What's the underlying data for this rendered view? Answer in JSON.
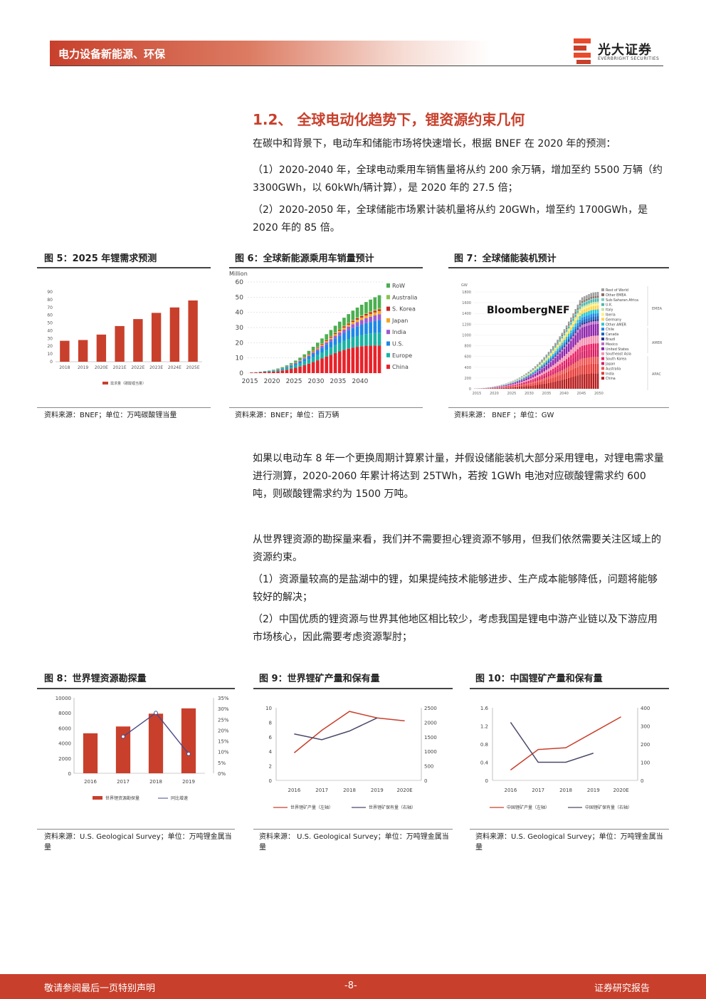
{
  "header": {
    "section": "电力设备新能源、环保",
    "logo_name": "光大证券",
    "logo_sub": "EVERBRIGHT SECURITIES",
    "accent": "#c8402c"
  },
  "section_title": "1.2、 全球电动化趋势下，锂资源约束几何",
  "paragraphs": {
    "p1": "在碳中和背景下，电动车和储能市场将快速增长，根据 BNEF 在 2020 年的预测：",
    "p2": "（1）2020-2040 年，全球电动乘用车销售量将从约 200 余万辆，增加至约 5500 万辆（约 3300GWh，以 60kWh/辆计算），是 2020 年的 27.5 倍；",
    "p3": "（2）2020-2050 年，全球储能市场累计装机量将从约 20GWh，增至约 1700GWh，是 2020 年的 85 倍。",
    "p4": "如果以电动车 8 年一个更换周期计算累计量，并假设储能装机大部分采用锂电，对锂电需求量进行测算，2020-2060 年累计将达到 25TWh，若按 1GWh 电池对应碳酸锂需求约 600 吨，则碳酸锂需求约为 1500 万吨。",
    "p5": "从世界锂资源的勘探量来看，我们并不需要担心锂资源不够用，但我们依然需要关注区域上的资源约束。",
    "p6": "（1）资源量较高的是盐湖中的锂，如果提纯技术能够进步、生产成本能够降低，问题将能够较好的解决；",
    "p7": "（2）中国优质的锂资源与世界其他地区相比较少，考虑我国是锂电中游产业链以及下游应用市场核心，因此需要考虑资源掣肘；"
  },
  "figures": {
    "fig5": {
      "title": "图 5：2025 年锂需求预测",
      "source": "资料来源：BNEF；单位：万吨碳酸锂当量"
    },
    "fig6": {
      "title": "图 6：全球新能源乘用车销量预计",
      "source": "资料来源：BNEF；单位：百万辆"
    },
    "fig7": {
      "title": "图 7：全球储能装机预计",
      "source": "资料来源： BNEF ；单位：GW",
      "brand": "BloombergNEF"
    },
    "fig8": {
      "title": "图 8：世界锂资源勘探量",
      "source": "资料来源：U.S. Geological Survey；单位：万吨锂金属当量"
    },
    "fig9": {
      "title": "图 9：世界锂矿产量和保有量",
      "source": "资料来源： U.S. Geological Survey；单位：万吨锂金属当量"
    },
    "fig10": {
      "title": "图 10：中国锂矿产量和保有量",
      "source": "资料来源：U.S. Geological Survey；单位：万吨锂金属当量"
    }
  },
  "footer": {
    "left": "敬请参阅最后一页特别声明",
    "center": "-8-",
    "right": "证券研究报告"
  },
  "chart_data": [
    {
      "id": "fig5",
      "type": "bar",
      "categories": [
        "2018",
        "2019",
        "2020E",
        "2021E",
        "2022E",
        "2023E",
        "2024E",
        "2025E"
      ],
      "series": [
        {
          "name": "需求量（碳酸锂当量）",
          "values": [
            27,
            28,
            35,
            46,
            55,
            63,
            70,
            79
          ]
        }
      ],
      "ylim": [
        0,
        90
      ],
      "yticks": [
        0,
        10,
        20,
        30,
        40,
        50,
        60,
        70,
        80,
        90
      ],
      "color": "#c8402c"
    },
    {
      "id": "fig6",
      "type": "bar",
      "stacked": true,
      "yunit": "Million",
      "ylim": [
        0,
        60
      ],
      "yticks": [
        0,
        10,
        20,
        30,
        40,
        50,
        60
      ],
      "xticks": [
        "2015",
        "2020",
        "2025",
        "2030",
        "2035",
        "2040"
      ],
      "series": [
        {
          "name": "China",
          "color": "#e8222a",
          "values": [
            0.3,
            0.4,
            0.5,
            0.7,
            0.8,
            1.0,
            1.3,
            1.7,
            2.2,
            2.8,
            3.5,
            4.3,
            5.2,
            6.2,
            7.3,
            8.4,
            9.6,
            10.8,
            12.0,
            13.2,
            14.3,
            15.3,
            16.1,
            16.8,
            17.3,
            17.7,
            18.0,
            18.1,
            18.2,
            18.2
          ]
        },
        {
          "name": "Europe",
          "color": "#1bb3a3",
          "values": [
            0.1,
            0.1,
            0.2,
            0.3,
            0.4,
            0.5,
            0.7,
            0.9,
            1.1,
            1.4,
            1.7,
            2.0,
            2.4,
            2.8,
            3.2,
            3.6,
            4.0,
            4.4,
            4.8,
            5.2,
            5.6,
            6.0,
            6.4,
            6.8,
            7.1,
            7.4,
            7.7,
            8.0,
            8.2,
            8.4
          ]
        },
        {
          "name": "U.S.",
          "color": "#1e88e5",
          "values": [
            0.05,
            0.1,
            0.1,
            0.2,
            0.2,
            0.3,
            0.4,
            0.5,
            0.7,
            0.9,
            1.1,
            1.4,
            1.7,
            2.0,
            2.4,
            2.8,
            3.2,
            3.6,
            4.0,
            4.4,
            4.8,
            5.2,
            5.6,
            6.0,
            6.4,
            6.8,
            7.2,
            7.6,
            8.0,
            8.4
          ]
        },
        {
          "name": "India",
          "color": "#9c5bd3",
          "values": [
            0,
            0,
            0,
            0,
            0,
            0,
            0.05,
            0.1,
            0.1,
            0.2,
            0.3,
            0.4,
            0.5,
            0.6,
            0.8,
            1.0,
            1.2,
            1.4,
            1.6,
            1.8,
            2.0,
            2.2,
            2.4,
            2.6,
            2.8,
            3.0,
            3.2,
            3.4,
            3.6,
            3.8
          ]
        },
        {
          "name": "Japan",
          "color": "#f5a623",
          "values": [
            0.02,
            0.03,
            0.04,
            0.05,
            0.06,
            0.08,
            0.1,
            0.12,
            0.15,
            0.2,
            0.25,
            0.3,
            0.4,
            0.5,
            0.6,
            0.7,
            0.8,
            0.9,
            1.0,
            1.1,
            1.2,
            1.3,
            1.4,
            1.5,
            1.6,
            1.7,
            1.8,
            1.9,
            2.0,
            2.1
          ]
        },
        {
          "name": "S. Korea",
          "color": "#c62828",
          "values": [
            0.01,
            0.02,
            0.03,
            0.04,
            0.05,
            0.06,
            0.08,
            0.1,
            0.12,
            0.15,
            0.2,
            0.25,
            0.3,
            0.35,
            0.4,
            0.45,
            0.5,
            0.55,
            0.6,
            0.65,
            0.7,
            0.75,
            0.8,
            0.85,
            0.9,
            0.95,
            1.0,
            1.05,
            1.1,
            1.15
          ]
        },
        {
          "name": "Australia",
          "color": "#8bc34a",
          "values": [
            0,
            0,
            0,
            0,
            0,
            0,
            0.02,
            0.03,
            0.05,
            0.07,
            0.1,
            0.13,
            0.16,
            0.2,
            0.24,
            0.28,
            0.32,
            0.36,
            0.4,
            0.44,
            0.48,
            0.52,
            0.56,
            0.6,
            0.64,
            0.68,
            0.72,
            0.76,
            0.8,
            0.84
          ]
        },
        {
          "name": "RoW",
          "color": "#4caf50",
          "values": [
            0.05,
            0.05,
            0.1,
            0.1,
            0.2,
            0.3,
            0.4,
            0.5,
            0.7,
            0.9,
            1.1,
            1.4,
            1.7,
            2.0,
            2.4,
            2.8,
            3.2,
            3.6,
            4.0,
            4.4,
            4.8,
            5.2,
            5.6,
            6.0,
            6.4,
            6.8,
            7.2,
            7.6,
            8.0,
            8.4
          ]
        }
      ]
    },
    {
      "id": "fig7",
      "type": "bar",
      "stacked": true,
      "yunit": "GW",
      "ylim": [
        0,
        1800
      ],
      "yticks": [
        0,
        200,
        400,
        600,
        800,
        1000,
        1200,
        1400,
        1600,
        1800
      ],
      "xticks": [
        "2015",
        "2020",
        "2025",
        "2030",
        "2035",
        "2040",
        "2045",
        "2050"
      ],
      "totals": [
        5,
        7,
        9,
        12,
        16,
        20,
        25,
        31,
        38,
        46,
        55,
        65,
        76,
        88,
        101,
        115,
        131,
        148,
        167,
        187,
        209,
        233,
        259,
        287,
        317,
        349,
        383,
        419,
        458,
        499,
        543,
        589,
        637,
        687,
        740,
        795,
        853,
        913,
        976,
        1041,
        1108,
        1178,
        1250,
        1325,
        1402,
        1482,
        1564,
        1649,
        1700,
        1720,
        1740,
        1760,
        1780,
        1790,
        1795,
        1800
      ],
      "legend": [
        "Rest of World",
        "Other EMEA",
        "Sub-Saharan Africa",
        "U.K.",
        "Italy",
        "Iberia",
        "Germany",
        "Other AMER",
        "Chile",
        "Canada",
        "Brazil",
        "Mexico",
        "United States",
        "Southeast Asia",
        "South Korea",
        "Japan",
        "Australia",
        "India",
        "China"
      ],
      "groups": [
        "EMEA",
        "AMER",
        "APAC"
      ],
      "colors": [
        "#9e9e9e",
        "#8d6e63",
        "#80cbc4",
        "#4db6ac",
        "#c5e1a5",
        "#fff176",
        "#ffd54f",
        "#26c6da",
        "#1e88e5",
        "#1565c0",
        "#283593",
        "#ba68c8",
        "#8e24aa",
        "#f48fb1",
        "#e91e63",
        "#d81b60",
        "#ef5350",
        "#e53935",
        "#b71c1c"
      ]
    },
    {
      "id": "fig8",
      "type": "bar",
      "categories": [
        "2016",
        "2017",
        "2018",
        "2019"
      ],
      "series": [
        {
          "name": "世界锂资源勘探量",
          "values": [
            5300,
            6200,
            7900,
            8600
          ]
        },
        {
          "name": "同比增速",
          "values": [
            null,
            17,
            28,
            9
          ],
          "axis": "right",
          "unit": "%"
        }
      ],
      "ylim": [
        0,
        10000
      ],
      "yticks": [
        0,
        2000,
        4000,
        6000,
        8000,
        10000
      ],
      "y2lim": [
        0,
        35
      ],
      "y2ticks": [
        "0%",
        "5%",
        "10%",
        "15%",
        "20%",
        "25%",
        "30%",
        "35%"
      ]
    },
    {
      "id": "fig9",
      "type": "line",
      "categories": [
        "2016",
        "2017",
        "2018",
        "2019",
        "2020E"
      ],
      "series": [
        {
          "name": "世界锂矿产量（左轴）",
          "color": "#c8402c",
          "values": [
            3.8,
            6.9,
            9.5,
            8.6,
            8.2
          ]
        },
        {
          "name": "世界锂矿保有量（右轴）",
          "color": "#4a4a6a",
          "values": [
            1600,
            1400,
            1700,
            2150,
            null
          ],
          "axis": "right"
        }
      ],
      "ylim": [
        0,
        10
      ],
      "yticks": [
        0,
        2,
        4,
        6,
        8,
        10
      ],
      "y2lim": [
        0,
        2500
      ],
      "y2ticks": [
        0,
        500,
        1000,
        1500,
        2000,
        2500
      ]
    },
    {
      "id": "fig10",
      "type": "line",
      "categories": [
        "2016",
        "2017",
        "2018",
        "2019",
        "2020E"
      ],
      "series": [
        {
          "name": "中国锂矿产量（左轴）",
          "color": "#c8402c",
          "values": [
            0.23,
            0.68,
            0.72,
            1.06,
            1.4
          ]
        },
        {
          "name": "中国锂矿保有量（右轴）",
          "color": "#4a4a6a",
          "values": [
            320,
            100,
            100,
            150,
            null
          ],
          "axis": "right"
        }
      ],
      "ylim": [
        0,
        1.6
      ],
      "yticks": [
        "0",
        "0.4",
        "0.8",
        "1.2",
        "1.6"
      ],
      "y2lim": [
        0,
        400
      ],
      "y2ticks": [
        0,
        100,
        200,
        300,
        400
      ]
    }
  ]
}
